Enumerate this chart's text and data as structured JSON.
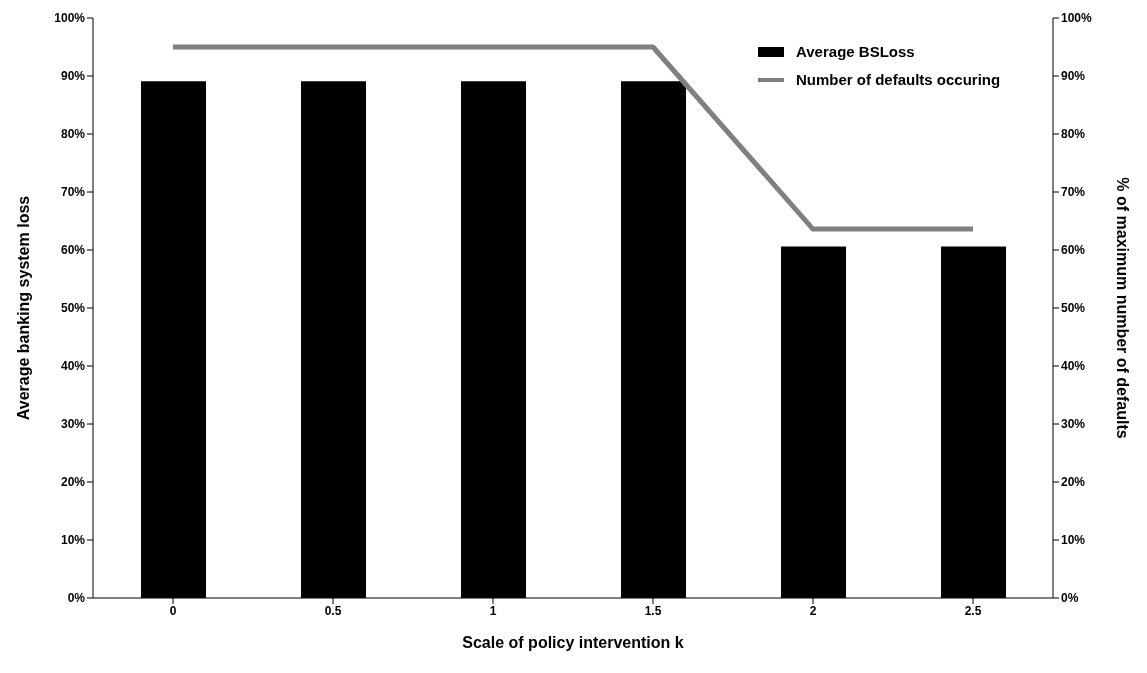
{
  "chart_data": {
    "type": "bar",
    "xlabel": "Scale of policy intervention k",
    "ylabel": "Average banking system loss",
    "y2label": "% of maximum number of defaults",
    "categories": [
      "0",
      "0.5",
      "1",
      "1.5",
      "2",
      "2.5"
    ],
    "series": [
      {
        "name": "Average BSLoss",
        "color": "#000000",
        "values": [
          89.1,
          89.1,
          89.1,
          89.1,
          60.6,
          60.6
        ]
      },
      {
        "name": "Number of defaults occuring",
        "type": "line",
        "axis": "y2",
        "color": "#808080",
        "values": [
          95,
          95,
          95,
          95,
          63.6,
          63.6
        ]
      }
    ],
    "ylim": [
      0,
      100
    ],
    "yticks": [
      {
        "value": 0,
        "label": "0%"
      },
      {
        "value": 10,
        "label": "10%"
      },
      {
        "value": 20,
        "label": "20%"
      },
      {
        "value": 30,
        "label": "30%"
      },
      {
        "value": 40,
        "label": "40%"
      },
      {
        "value": 50,
        "label": "50%"
      },
      {
        "value": 60,
        "label": "60%"
      },
      {
        "value": 70,
        "label": "70%"
      },
      {
        "value": 80,
        "label": "80%"
      },
      {
        "value": 90,
        "label": "90%"
      },
      {
        "value": 100,
        "label": "100%"
      }
    ],
    "y2lim": [
      0,
      100
    ],
    "y2ticks": [
      {
        "value": 0,
        "label": "0%"
      },
      {
        "value": 10,
        "label": "10%"
      },
      {
        "value": 20,
        "label": "20%"
      },
      {
        "value": 30,
        "label": "30%"
      },
      {
        "value": 40,
        "label": "40%"
      },
      {
        "value": 50,
        "label": "50%"
      },
      {
        "value": 60,
        "label": "60%"
      },
      {
        "value": 70,
        "label": "70%"
      },
      {
        "value": 80,
        "label": "80%"
      },
      {
        "value": 90,
        "label": "90%"
      },
      {
        "value": 100,
        "label": "100%"
      }
    ],
    "grid": false,
    "legend": "top right",
    "marker": "none",
    "line_style": "solid"
  }
}
